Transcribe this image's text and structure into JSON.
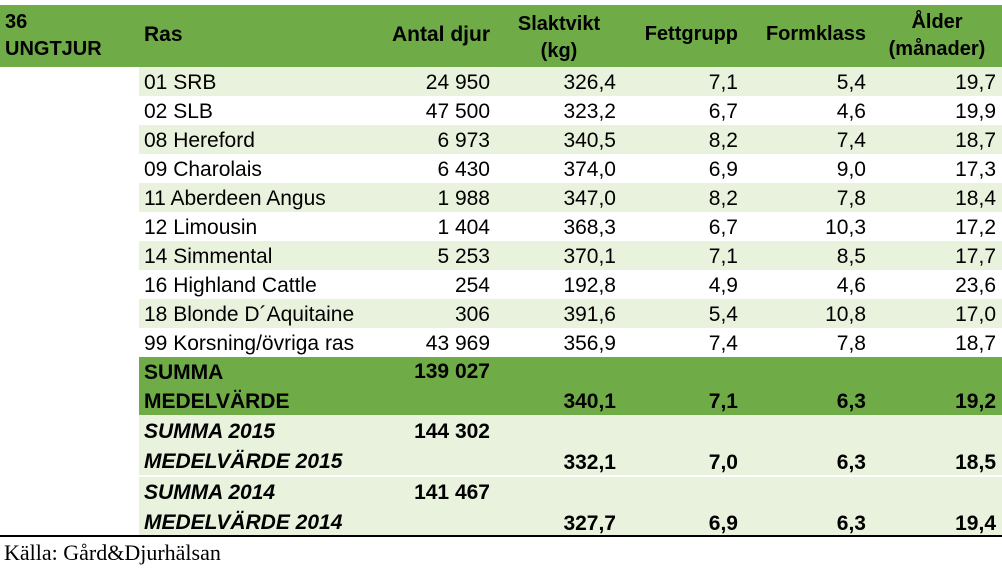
{
  "table": {
    "corner_line1": "36",
    "corner_line2": "UNGTJUR",
    "headers": {
      "ras": "Ras",
      "antal": "Antal djur",
      "slaktvikt_1": "Slaktvikt",
      "slaktvikt_2": "(kg)",
      "fett": "Fettgrupp",
      "form": "Formklass",
      "alder_1": "Ålder",
      "alder_2": "(månader)"
    },
    "rows": [
      {
        "ras": "01 SRB",
        "antal": "24 950",
        "vikt": "326,4",
        "fett": "7,1",
        "form": "5,4",
        "alder": "19,7"
      },
      {
        "ras": "02 SLB",
        "antal": "47 500",
        "vikt": "323,2",
        "fett": "6,7",
        "form": "4,6",
        "alder": "19,9"
      },
      {
        "ras": "08 Hereford",
        "antal": "6 973",
        "vikt": "340,5",
        "fett": "8,2",
        "form": "7,4",
        "alder": "18,7"
      },
      {
        "ras": "09 Charolais",
        "antal": "6 430",
        "vikt": "374,0",
        "fett": "6,9",
        "form": "9,0",
        "alder": "17,3"
      },
      {
        "ras": "11 Aberdeen Angus",
        "antal": "1 988",
        "vikt": "347,0",
        "fett": "8,2",
        "form": "7,8",
        "alder": "18,4"
      },
      {
        "ras": "12 Limousin",
        "antal": "1 404",
        "vikt": "368,3",
        "fett": "6,7",
        "form": "10,3",
        "alder": "17,2"
      },
      {
        "ras": "14 Simmental",
        "antal": "5 253",
        "vikt": "370,1",
        "fett": "7,1",
        "form": "8,5",
        "alder": "17,7"
      },
      {
        "ras": "16 Highland Cattle",
        "antal": "254",
        "vikt": "192,8",
        "fett": "4,9",
        "form": "4,6",
        "alder": "23,6"
      },
      {
        "ras": "18 Blonde D´Aquitaine",
        "antal": "306",
        "vikt": "391,6",
        "fett": "5,4",
        "form": "10,8",
        "alder": "17,0"
      },
      {
        "ras": "99 Korsning/övriga ras",
        "antal": "43 969",
        "vikt": "356,9",
        "fett": "7,4",
        "form": "7,8",
        "alder": "18,7"
      }
    ],
    "summary": {
      "summa_label": "SUMMA",
      "summa_value": "139 027",
      "medel_label": "MEDELVÄRDE",
      "medel_vikt": "340,1",
      "medel_fett": "7,1",
      "medel_form": "6,3",
      "medel_alder": "19,2"
    },
    "summary_2015": {
      "summa_label": "SUMMA 2015",
      "summa_value": "144 302",
      "medel_label": "MEDELVÄRDE 2015",
      "medel_vikt": "332,1",
      "medel_fett": "7,0",
      "medel_form": "6,3",
      "medel_alder": "18,5"
    },
    "summary_2014": {
      "summa_label": "SUMMA 2014",
      "summa_value": "141 467",
      "medel_label": "MEDELVÄRDE 2014",
      "medel_vikt": "327,7",
      "medel_fett": "6,9",
      "medel_form": "6,3",
      "medel_alder": "19,4"
    }
  },
  "source": "Källa: Gård&Djurhälsan"
}
